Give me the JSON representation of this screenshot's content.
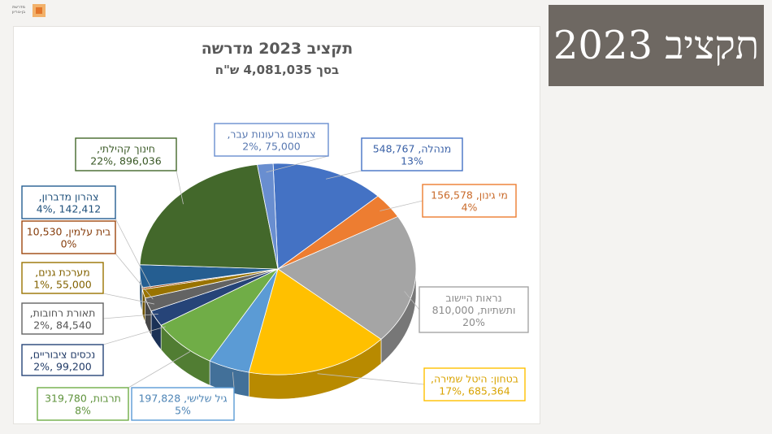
{
  "logo": {
    "text_line1": "מדרשת",
    "text_line2": "בן-גוריון"
  },
  "slide_title": "תקציב 2023",
  "chart_data": {
    "type": "pie",
    "title": "תקציב 2023 מדרשה",
    "subtitle": "בסך 4,081,035 ש\"ח",
    "slices": [
      {
        "category": "מנהלה",
        "value": 548767,
        "percent": "13%",
        "color": "#4472c4",
        "label_lines": [
          "מנהלה, 548,767",
          "13%"
        ]
      },
      {
        "category": "מי גינון",
        "value": 156578,
        "percent": "4%",
        "color": "#ed7d31",
        "label_lines": [
          "מי גינון, 156,578",
          "4%"
        ]
      },
      {
        "category": "נראות היישוב ותשתיות",
        "value": 810000,
        "percent": "20%",
        "color": "#a5a5a5",
        "label_lines": [
          "נראות היישוב",
          "ותשתיות, 810,000",
          "20%"
        ]
      },
      {
        "category": "בטחון: היטל שמירה",
        "value": 685364,
        "percent": "17%",
        "color": "#ffc000",
        "label_lines": [
          "בטחון: היטל שמירה,",
          "685,364 ,17%"
        ]
      },
      {
        "category": "גיל שלישי",
        "value": 197828,
        "percent": "5%",
        "color": "#5b9bd5",
        "label_lines": [
          "גיל שלישי, 197,828",
          "5%"
        ]
      },
      {
        "category": "תרבות",
        "value": 319780,
        "percent": "8%",
        "color": "#70ad47",
        "label_lines": [
          "תרבות, 319,780",
          "8%"
        ]
      },
      {
        "category": "נכסים ציבוריים",
        "value": 99200,
        "percent": "2%",
        "color": "#264478",
        "label_lines": [
          "נכסים ציבוריים,",
          "99,200 ,2%"
        ]
      },
      {
        "category": "תאורת רחובות",
        "value": 84540,
        "percent": "2%",
        "color": "#636363",
        "label_lines": [
          "תאורת רחובות,",
          "84,540 ,2%"
        ]
      },
      {
        "category": "מערכת גנים",
        "value": 55000,
        "percent": "1%",
        "color": "#997300",
        "label_lines": [
          "מערכת גנים,",
          "55,000 ,1%"
        ]
      },
      {
        "category": "בית עלמין",
        "value": 10530,
        "percent": "0%",
        "color": "#9e480e",
        "label_lines": [
          "בית עלמין, 10,530",
          "0%"
        ]
      },
      {
        "category": "צהרון מדברון",
        "value": 142412,
        "percent": "4%",
        "color": "#255e91",
        "label_lines": [
          "צהרון מדברון,",
          "142,412 ,4%"
        ]
      },
      {
        "category": "חינוך קהילתי",
        "value": 896036,
        "percent": "22%",
        "color": "#43682b",
        "label_lines": [
          "חינוך קהילתי,",
          "896,036 ,22%"
        ]
      },
      {
        "category": "צמצום גרעונות עבר",
        "value": 75000,
        "percent": "2%",
        "color": "#698ed0",
        "label_lines": [
          "צמצום גרעונות עבר,",
          "75,000 ,2%"
        ]
      }
    ]
  }
}
